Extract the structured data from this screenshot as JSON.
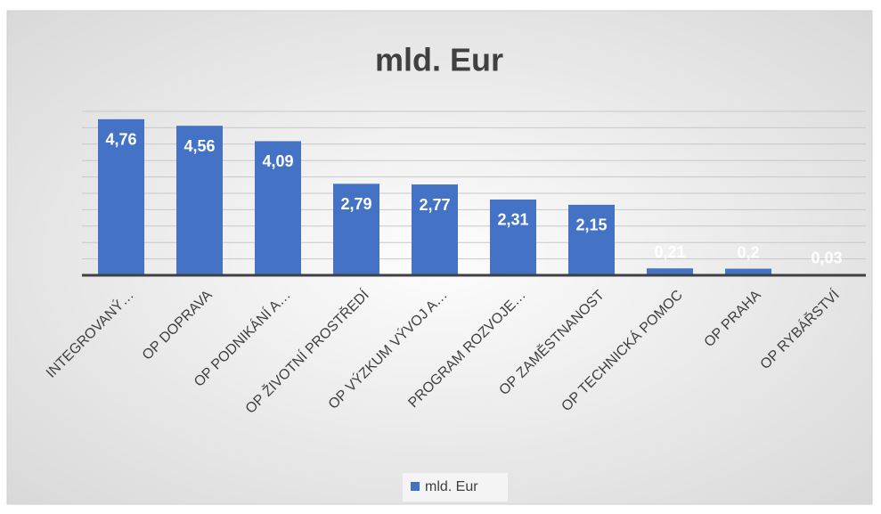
{
  "chart_data": {
    "type": "bar",
    "title": "mld. Eur",
    "categories": [
      "INTEGROVANÝ…",
      "OP DOPRAVA",
      "OP PODNIKÁNÍ A…",
      "OP ŽIVOTNÍ PROSTŘEDÍ",
      "OP VÝZKUM VÝVOJ A…",
      "PROGRAM ROZVOJE…",
      "OP ZAMĚSTNANOST",
      "OP TECHNICKÁ POMOC",
      "OP PRAHA",
      "OP RYBÁŘSTVÍ"
    ],
    "series": [
      {
        "name": "mld. Eur",
        "color": "#4472c4",
        "values": [
          4.76,
          4.56,
          4.09,
          2.79,
          2.77,
          2.31,
          2.15,
          0.21,
          0.2,
          0.03
        ],
        "value_labels": [
          "4,76",
          "4,56",
          "4,09",
          "2,79",
          "2,77",
          "2,31",
          "2,15",
          "0,21",
          "0,2",
          "0,03"
        ]
      }
    ],
    "ylim": [
      0,
      5
    ],
    "yticks": [
      0,
      0.5,
      1,
      1.5,
      2,
      2.5,
      3,
      3.5,
      4,
      4.5,
      5
    ],
    "grid": true,
    "legend": "bottom"
  }
}
